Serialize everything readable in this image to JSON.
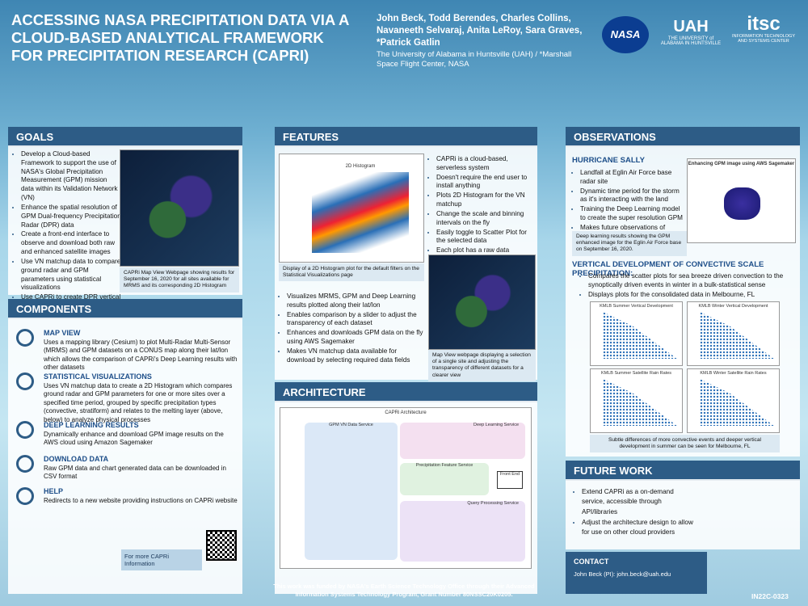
{
  "header": {
    "title": "ACCESSING NASA PRECIPITATION DATA VIA A CLOUD-BASED ANALYTICAL FRAMEWORK FOR PRECIPITATION RESEARCH (CAPRI)",
    "authors": "John Beck, Todd Berendes, Charles Collins, Navaneeth Selvaraj, Anita LeRoy, Sara Graves, *Patrick Gatlin",
    "affiliation": "The University of Alabama in Huntsville (UAH) / *Marshall Space Flight Center, NASA",
    "logos": [
      "NASA",
      "UAH",
      "THE UNIVERSITY of ALABAMA IN HUNTSVILLE",
      "itsc",
      "INFORMATION TECHNOLOGY AND SYSTEMS CENTER"
    ]
  },
  "goals": {
    "heading": "GOALS",
    "bullets": [
      "Develop a Cloud-based Framework to support the use of NASA's Global Precipitation Measurement (GPM) mission data within its Validation Network (VN)",
      "Enhance the spatial resolution of GPM Dual-frequency Precipitation Radar (DPR) data",
      "Create a front-end interface to observe and download both raw and enhanced satellite images",
      "Use VN matchup data to compare ground radar and GPM parameters using statistical visualizations",
      "Use CAPRi to create DPR vertical development convective-scale precipitation features"
    ],
    "caption": "CAPRi Map View Webpage showing results for September 16, 2020 for all sites available for MRMS and its corresponding 2D Histogram"
  },
  "components": {
    "heading": "COMPONENTS",
    "items": [
      {
        "title": "MAP VIEW",
        "text": "Uses a mapping library (Cesium) to plot Multi-Radar Multi-Sensor (MRMS) and GPM datasets on a CONUS map along their lat/lon which allows the comparison of CAPRi's Deep Learning results with other datasets"
      },
      {
        "title": "STATISTICAL VISUALIZATIONS",
        "text": "Uses VN matchup data to create a 2D Histogram which compares ground radar and GPM parameters for one or more sites over a specified time period, grouped by specific precipitation types (convective, stratiform) and relates to the melting layer (above, below) to analyze physical processes"
      },
      {
        "title": "DEEP LEARNING RESULTS",
        "text": "Dynamically enhance and download GPM image results on the AWS cloud using Amazon Sagemaker"
      },
      {
        "title": "DOWNLOAD DATA",
        "text": "Raw GPM data and chart generated data can be downloaded in CSV format"
      },
      {
        "title": "HELP",
        "text": "Redirects to a new website providing instructions on CAPRi website"
      }
    ],
    "qr_label": "For more CAPRi Information"
  },
  "features": {
    "heading": "FEATURES",
    "figure_title": "2D Histogram",
    "bullets_top": [
      "CAPRi is a cloud-based, serverless system",
      "Doesn't require the end user to install anything",
      "Plots 2D Histogram for the VN matchup",
      "Change the scale and binning intervals on the fly",
      "Easily toggle to Scatter Plot for the selected data",
      "Each plot has a raw data download option in CSV format"
    ],
    "caption_histogram": "Display of a 2D Histogram plot for the default filters on the Statistical Visualizations page",
    "bullets_bottom": [
      "Visualizes MRMS, GPM and Deep Learning results plotted along their lat/lon",
      "Enables comparison by a slider to adjust the transparency of each dataset",
      "Enhances and downloads GPM data on the fly using AWS Sagemaker",
      "Makes VN matchup data available for download by selecting required data fields"
    ],
    "caption_map": "Map View webpage displaying a selection of a single site and adjusting the transparency of different datasets for a clearer view"
  },
  "architecture": {
    "heading": "ARCHITECTURE",
    "figure_title": "CAPRi Architecture",
    "services": [
      "GPM VN Data Service",
      "Deep Learning Service",
      "Precipitation Feature Service",
      "Query Processing Service",
      "Front End"
    ]
  },
  "observations": {
    "heading": "OBSERVATIONS",
    "sally_heading": "HURRICANE SALLY",
    "sally_bullets": [
      "Landfall at Eglin Air Force base radar site",
      "Dynamic time period for the storm as it's interacting with the land",
      "Training the Deep Learning model to create the super resolution GPM",
      "Makes future observations of offshore storms for missing ground-based radar"
    ],
    "sally_figure_title": "Enhancing GPM image using AWS Sagemaker",
    "sally_caption": "Deep learning results showing the GPM enhanced image for the Eglin Air Force base on September 16, 2020.",
    "vertical_heading": "VERTICAL DEVELOPMENT OF CONVECTIVE SCALE PRECIPITATION:",
    "vertical_bullets": [
      "Compares the scatter plots for sea breeze driven convection to the synoptically driven events in winter in a bulk-statistical sense",
      "Displays plots for the consolidated data in Melbourne, FL"
    ],
    "plot_titles": [
      "KMLB Summer Vertical Development",
      "KMLB Winter Vertical Development",
      "KMLB Summer Satellite Rain Rates",
      "KMLB Winter Satellite Rain Rates"
    ],
    "vertical_caption": "Subtle differences of more convective events and deeper vertical development in summer can be seen for Melbourne, FL"
  },
  "future": {
    "heading": "FUTURE WORK",
    "bullets": [
      "Extend CAPRi as a on-demand service, accessible through API/libraries",
      "Adjust the architecture design to allow for use on other cloud providers"
    ]
  },
  "contact": {
    "heading": "CONTACT",
    "text": "John Beck (PI): john.beck@uah.edu"
  },
  "footer": {
    "funding": "This work was funded by NASA's Earth Science Technology Office through their Advanced Information Systems Technology Program, Grant Number 80NSSC20K0205.",
    "id": "IN22C-0323"
  }
}
